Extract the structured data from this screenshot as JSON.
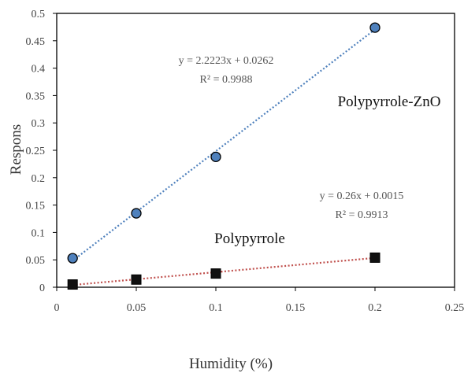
{
  "chart_data": {
    "type": "scatter",
    "title": "",
    "xlabel": "Humidity (%)",
    "ylabel": "Respons",
    "xlim": [
      0,
      0.25
    ],
    "ylim": [
      0,
      0.5
    ],
    "x_ticks": [
      "0",
      "0.05",
      "0.1",
      "0.15",
      "0.2",
      "0.25"
    ],
    "y_ticks": [
      "0",
      "0.05",
      "0.1",
      "0.15",
      "0.2",
      "0.25",
      "0.3",
      "0.35",
      "0.4",
      "0.45",
      "0.5"
    ],
    "grid": false,
    "series": [
      {
        "name": "Polypyrrole-ZnO",
        "marker": "circle",
        "marker_color": "#4f81bd",
        "trendline_color": "#4f81bd",
        "x": [
          0.01,
          0.05,
          0.1,
          0.2
        ],
        "y": [
          0.053,
          0.135,
          0.238,
          0.474
        ],
        "trendline": {
          "slope": 2.2223,
          "intercept": 0.0262
        },
        "equation": "y = 2.2223x + 0.0262",
        "r2": "R² = 0.9988"
      },
      {
        "name": "Polypyrrole",
        "marker": "square",
        "marker_color": "#111111",
        "trendline_color": "#c0504d",
        "x": [
          0.01,
          0.05,
          0.1,
          0.2
        ],
        "y": [
          0.005,
          0.014,
          0.025,
          0.054
        ],
        "trendline": {
          "slope": 0.26,
          "intercept": 0.0015
        },
        "equation": "y = 0.26x + 0.0015",
        "r2": "R² = 0.9913"
      }
    ]
  }
}
